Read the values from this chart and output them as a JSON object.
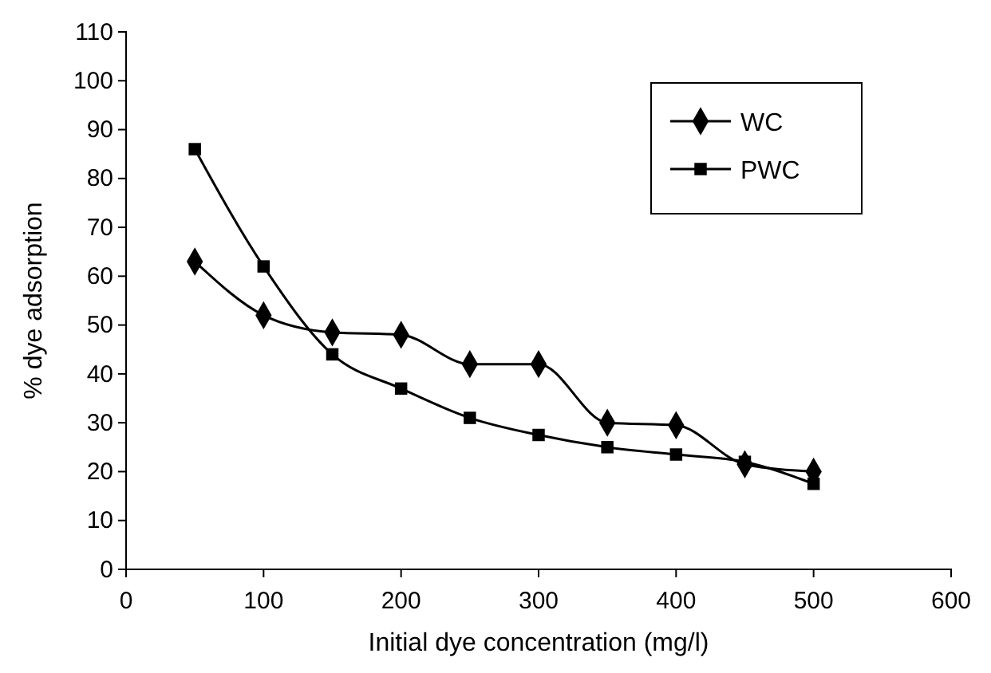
{
  "chart_data": {
    "type": "line",
    "xlabel": "Initial dye concentration (mg/l)",
    "ylabel": "% dye adsorption",
    "x": [
      50,
      100,
      150,
      200,
      250,
      300,
      350,
      400,
      450,
      500
    ],
    "series": [
      {
        "name": "WC",
        "color": "#000000",
        "marker": "diamond",
        "values": [
          63,
          52,
          48.5,
          48,
          42,
          42,
          30,
          29.5,
          21.5,
          20
        ]
      },
      {
        "name": "PWC",
        "color": "#000000",
        "marker": "square",
        "values": [
          86,
          62,
          44,
          37,
          31,
          27.5,
          25,
          23.5,
          22,
          17.5
        ]
      }
    ],
    "xlim": [
      0,
      600
    ],
    "xticks": [
      0,
      100,
      200,
      300,
      400,
      500,
      600
    ],
    "ylim": [
      0,
      110
    ],
    "yticks": [
      0,
      10,
      20,
      30,
      40,
      50,
      60,
      70,
      80,
      90,
      100,
      110
    ],
    "grid": false,
    "legend": "top right",
    "line_style": "solid"
  }
}
